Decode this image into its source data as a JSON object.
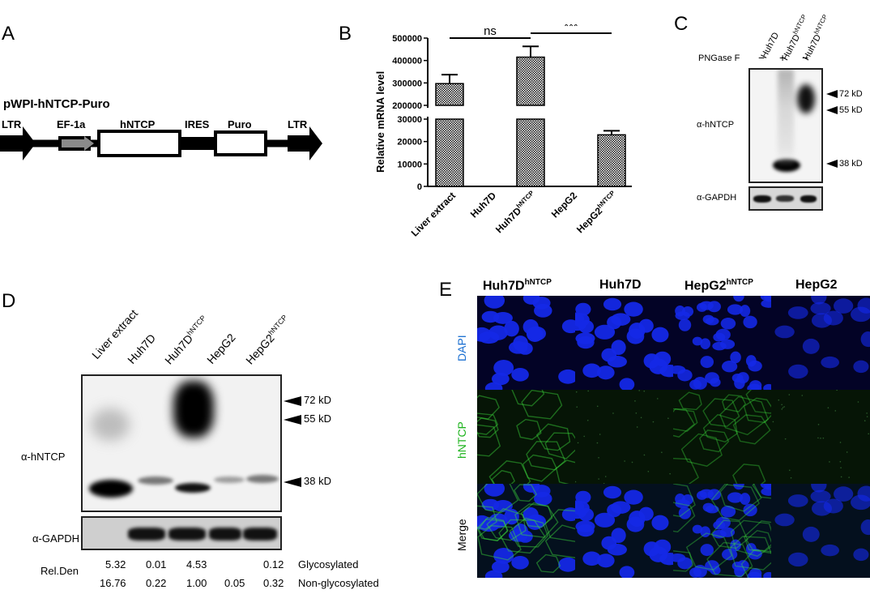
{
  "panels": {
    "a": "A",
    "b": "B",
    "c": "C",
    "d": "D",
    "e": "E"
  },
  "panelA": {
    "construct": "pWPI-hNTCP-Puro",
    "ltr_left": "LTR",
    "promoter": "EF-1a",
    "gene": "hNTCP",
    "ires": "IRES",
    "puro": "Puro",
    "ltr_right": "LTR"
  },
  "panelB": {
    "ylabel": "Relative  mRNA level",
    "sig_ns": "ns",
    "sig_star": "***",
    "upper_ticks": [
      "500000",
      "400000",
      "300000",
      "200000"
    ],
    "lower_ticks": [
      "30000",
      "20000",
      "10000",
      "0"
    ],
    "xlabels": [
      "Liver extract",
      "Huh7D",
      "Huh7D",
      "HepG2",
      "HepG2"
    ],
    "xsup": [
      "",
      "",
      "hNTCP",
      "",
      "hNTCP"
    ]
  },
  "chart_data": {
    "type": "bar",
    "categories": [
      "Liver extract",
      "Huh7D",
      "Huh7DhNTCP",
      "HepG2",
      "HepG2hNTCP"
    ],
    "values": [
      297000,
      0,
      415000,
      0,
      23000
    ],
    "errors": [
      40000,
      0,
      48000,
      0,
      1800
    ],
    "ylabel": "Relative  mRNA level",
    "axis_break": [
      30000,
      200000
    ],
    "ylim_lower": [
      0,
      30000
    ],
    "ylim_upper": [
      200000,
      500000
    ],
    "significance": [
      {
        "pair": [
          "Liver extract",
          "Huh7DhNTCP"
        ],
        "label": "ns"
      },
      {
        "pair": [
          "Huh7DhNTCP",
          "HepG2hNTCP"
        ],
        "label": "***"
      }
    ]
  },
  "panelC": {
    "lanes": [
      "Huh7D",
      "Huh7D",
      "Huh7D"
    ],
    "lane_sup": [
      "",
      "hNTCP",
      "hNTCP"
    ],
    "png_label": "PNGase F",
    "png_marks": [
      "−",
      "+",
      "−"
    ],
    "antibody": "α-hNTCP",
    "loading": "α-GAPDH",
    "markers": [
      "72 kD",
      "55 kD",
      "38 kD"
    ]
  },
  "panelD": {
    "lanes": [
      "Liver extract",
      "Huh7D",
      "Huh7D",
      "HepG2",
      "HepG2"
    ],
    "lane_sup": [
      "",
      "",
      "hNTCP",
      "",
      "hNTCP"
    ],
    "antibody": "α-hNTCP",
    "loading": "α-GAPDH",
    "markers": [
      "72 kD",
      "55 kD",
      "38 kD"
    ],
    "rel_den_label": "Rel.Den",
    "glyco_label": "Glycosylated",
    "nonglyco_label": "Non-glycosylated",
    "glyco_values": [
      "5.32",
      "0.01",
      "4.53",
      "",
      "0.12"
    ],
    "nonglyco_values": [
      "16.76",
      "0.22",
      "1.00",
      "0.05",
      "0.32"
    ]
  },
  "panelE": {
    "columns": [
      "Huh7D",
      "Huh7D",
      "HepG2",
      "HepG2"
    ],
    "column_sup": [
      "hNTCP",
      "",
      "hNTCP",
      ""
    ],
    "rows": [
      "DAPI",
      "hNTCP",
      "Merge"
    ],
    "row_colors": [
      "#1a6fd1",
      "#1fb41f",
      "#000000"
    ]
  }
}
